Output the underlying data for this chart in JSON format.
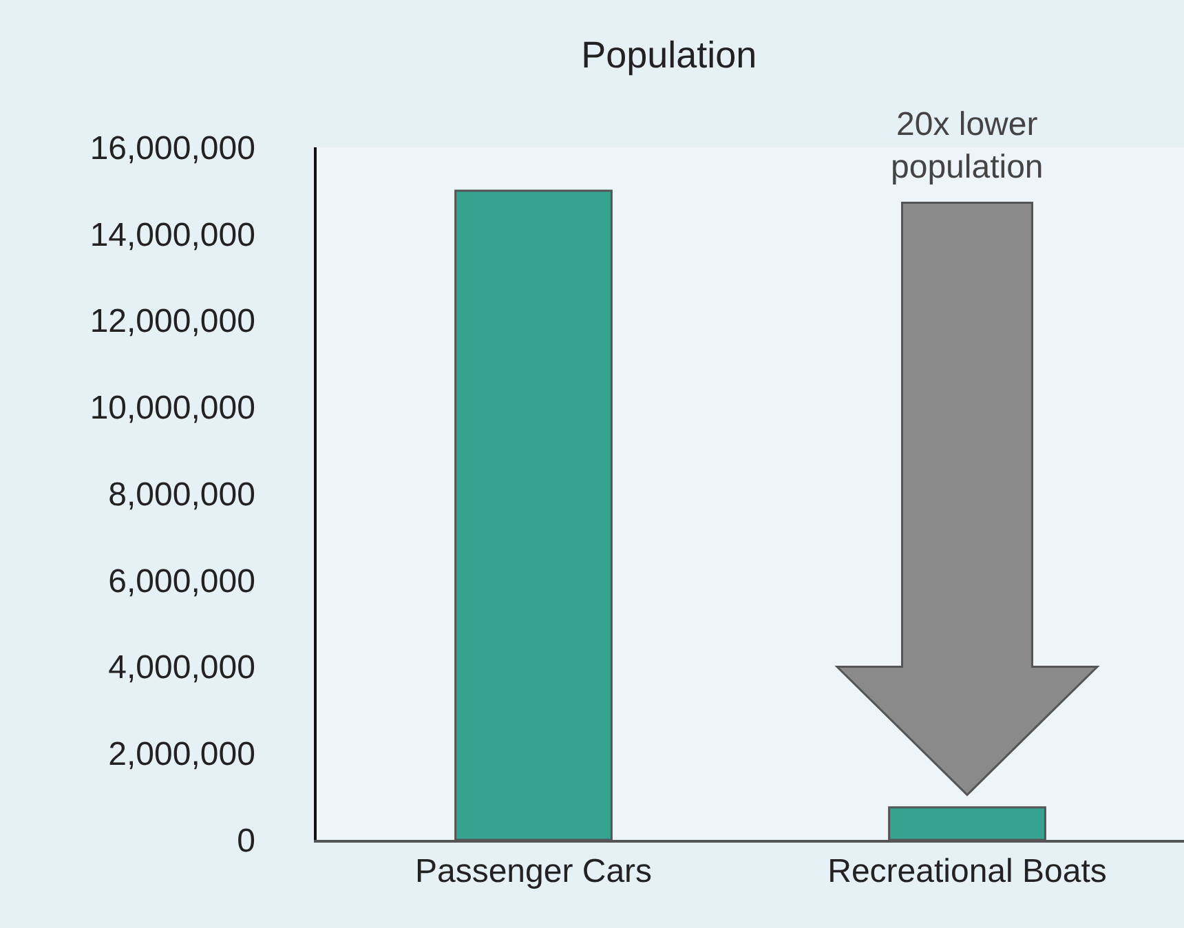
{
  "chart_data": {
    "type": "bar",
    "title": "Population",
    "categories": [
      "Passenger Cars",
      "Recreational Boats"
    ],
    "values": [
      15000000,
      750000
    ],
    "color": "#36a390",
    "ylim": [
      0,
      16000000
    ],
    "yticks": [
      {
        "value": 0,
        "label": "0"
      },
      {
        "value": 2000000,
        "label": "2,000,000"
      },
      {
        "value": 4000000,
        "label": "4,000,000"
      },
      {
        "value": 6000000,
        "label": "6,000,000"
      },
      {
        "value": 8000000,
        "label": "8,000,000"
      },
      {
        "value": 10000000,
        "label": "10,000,000"
      },
      {
        "value": 12000000,
        "label": "12,000,000"
      },
      {
        "value": 14000000,
        "label": "14,000,000"
      },
      {
        "value": 16000000,
        "label": "16,000,000"
      }
    ],
    "grid": false,
    "annotations": [
      "20x lower\npopulation"
    ]
  }
}
